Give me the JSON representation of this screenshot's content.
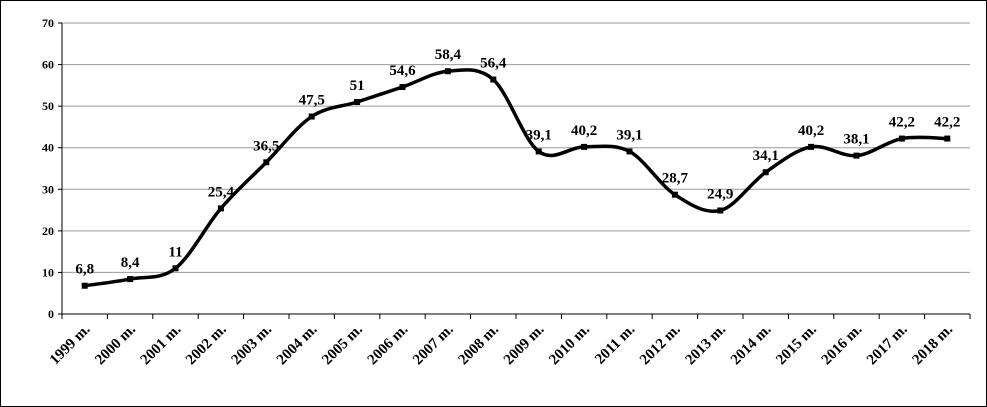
{
  "chart_data": {
    "type": "line",
    "categories": [
      "1999 m.",
      "2000 m.",
      "2001 m.",
      "2002 m.",
      "2003 m.",
      "2004 m.",
      "2005 m.",
      "2006 m.",
      "2007 m.",
      "2008 m.",
      "2009 m.",
      "2010 m.",
      "2011 m.",
      "2012 m.",
      "2013 m.",
      "2014 m.",
      "2015 m.",
      "2016 m.",
      "2017 m.",
      "2018 m."
    ],
    "values": [
      6.8,
      8.4,
      11,
      25.4,
      36.5,
      47.5,
      51,
      54.6,
      58.4,
      56.4,
      39.1,
      40.2,
      39.1,
      28.7,
      24.9,
      34.1,
      40.2,
      38.1,
      42.2,
      42.2
    ],
    "value_labels": [
      "6,8",
      "8,4",
      "11",
      "25,4",
      "36,5",
      "47,5",
      "51",
      "54,6",
      "58,4",
      "56,4",
      "39,1",
      "40,2",
      "39,1",
      "28,7",
      "24,9",
      "34,1",
      "40,2",
      "38,1",
      "42,2",
      "42,2"
    ],
    "color": "#000000",
    "smooth": true,
    "ylim": [
      0,
      70
    ],
    "yticks": [
      0,
      10,
      20,
      30,
      40,
      50,
      60,
      70
    ],
    "grid": true
  }
}
